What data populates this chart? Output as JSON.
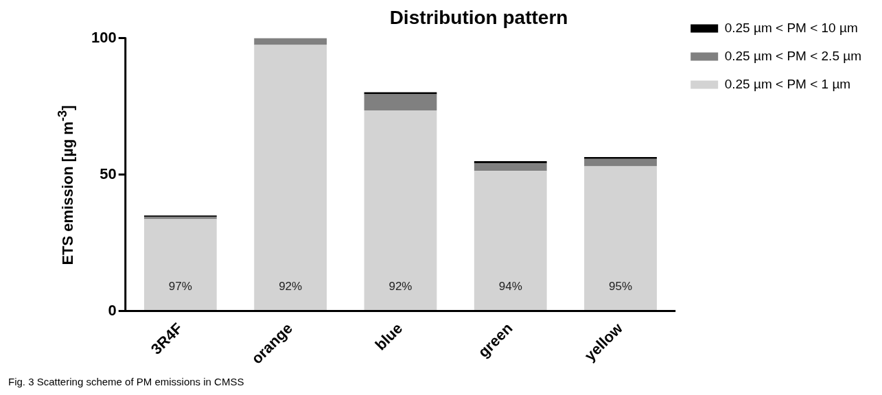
{
  "chart_data": {
    "type": "bar",
    "title": "Distribution pattern",
    "ylabel": "ETS emission [µg m$^{-3}$]",
    "categories": [
      "3R4F",
      "orange",
      "blue",
      "green",
      "yellow"
    ],
    "stacked": true,
    "ylim": [
      0,
      100
    ],
    "yticks": [
      0,
      50,
      100
    ],
    "grid": false,
    "legend": "top right",
    "series": [
      {
        "name": "0.25 µm < PM < 1 µm",
        "color": "#d3d3d3",
        "values": [
          33.7,
          97.5,
          73.5,
          51.3,
          53.0
        ]
      },
      {
        "name": "0.25 µm < PM < 2.5 µm",
        "color": "#808080",
        "values": [
          0.8,
          2.5,
          5.9,
          2.8,
          2.7
        ]
      },
      {
        "name": "0.25 µm < PM < 10 µm",
        "color": "#000000",
        "values": [
          0.5,
          0,
          0.8,
          0.8,
          0.7
        ]
      }
    ],
    "annotations": [
      "97%",
      "92%",
      "92%",
      "94%",
      "95%",
      "Fig. 3  Scattering scheme of PM emissions in CMSS"
    ]
  }
}
